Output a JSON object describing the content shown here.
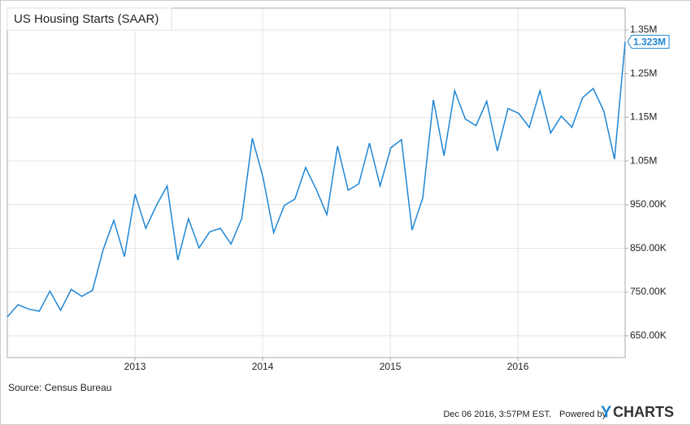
{
  "chart_data": {
    "type": "line",
    "title": "US Housing Starts (SAAR)",
    "source": "Source: Census Bureau",
    "timestamp": "Dec 06 2016, 3:57PM EST.",
    "powered_by": "Powered by",
    "brand_mark": "Y",
    "brand": "CHARTS",
    "series": [
      {
        "name": "US Housing Starts (SAAR)",
        "color": "#1f86d4",
        "values": [
          693000,
          721000,
          711000,
          706000,
          752000,
          708000,
          756000,
          740000,
          754000,
          847000,
          914000,
          831000,
          974000,
          896000,
          948000,
          993000,
          823000,
          918000,
          851000,
          888000,
          896000,
          860000,
          918000,
          1102000,
          1013000,
          886000,
          948000,
          963000,
          1035000,
          985000,
          927000,
          1084000,
          983000,
          998000,
          1091000,
          993000,
          1080000,
          1099000,
          892000,
          965000,
          1190000,
          1062000,
          1211000,
          1146000,
          1131000,
          1187000,
          1073000,
          1170000,
          1159000,
          1127000,
          1211000,
          1114000,
          1153000,
          1127000,
          1195000,
          1216000,
          1164000,
          1054000,
          1323000
        ],
        "last_value_label": "1.323M"
      }
    ],
    "xlim": [
      2012,
      2016.84
    ],
    "xticks": [
      2013,
      2014,
      2015,
      2016
    ],
    "ylim": [
      600000,
      1400000
    ],
    "yticks": [
      {
        "value": 650000,
        "label": "650.00K"
      },
      {
        "value": 750000,
        "label": "750.00K"
      },
      {
        "value": 850000,
        "label": "850.00K"
      },
      {
        "value": 950000,
        "label": "950.00K"
      },
      {
        "value": 1050000,
        "label": "1.05M"
      },
      {
        "value": 1150000,
        "label": "1.15M"
      },
      {
        "value": 1250000,
        "label": "1.25M"
      },
      {
        "value": 1350000,
        "label": "1.35M"
      }
    ],
    "grid": true
  }
}
